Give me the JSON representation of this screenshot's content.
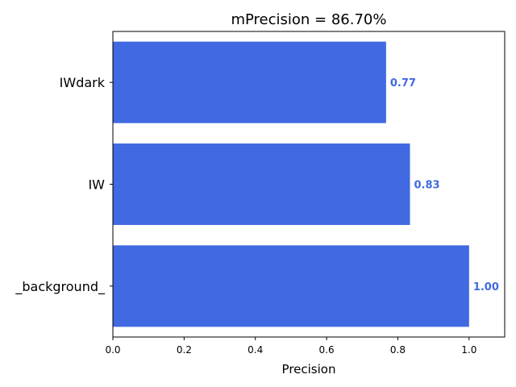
{
  "chart_data": {
    "type": "bar",
    "orientation": "horizontal",
    "title": "mPrecision = 86.70%",
    "xlabel": "Precision",
    "ylabel": "",
    "categories": [
      "_background_",
      "IW",
      "IWdark"
    ],
    "values": [
      1.0,
      0.834,
      0.767
    ],
    "data_labels": [
      "1.00",
      "0.83",
      "0.77"
    ],
    "xlim": [
      0,
      1.1
    ],
    "xticks": [
      0,
      0.2,
      0.4,
      0.6,
      0.8,
      1.0
    ],
    "xtick_labels": [
      "0.0",
      "0.2",
      "0.4",
      "0.6",
      "0.8",
      "1.0"
    ],
    "bar_color": "#4169e1",
    "label_color": "#4169e1",
    "grid": false,
    "legend": "none"
  }
}
